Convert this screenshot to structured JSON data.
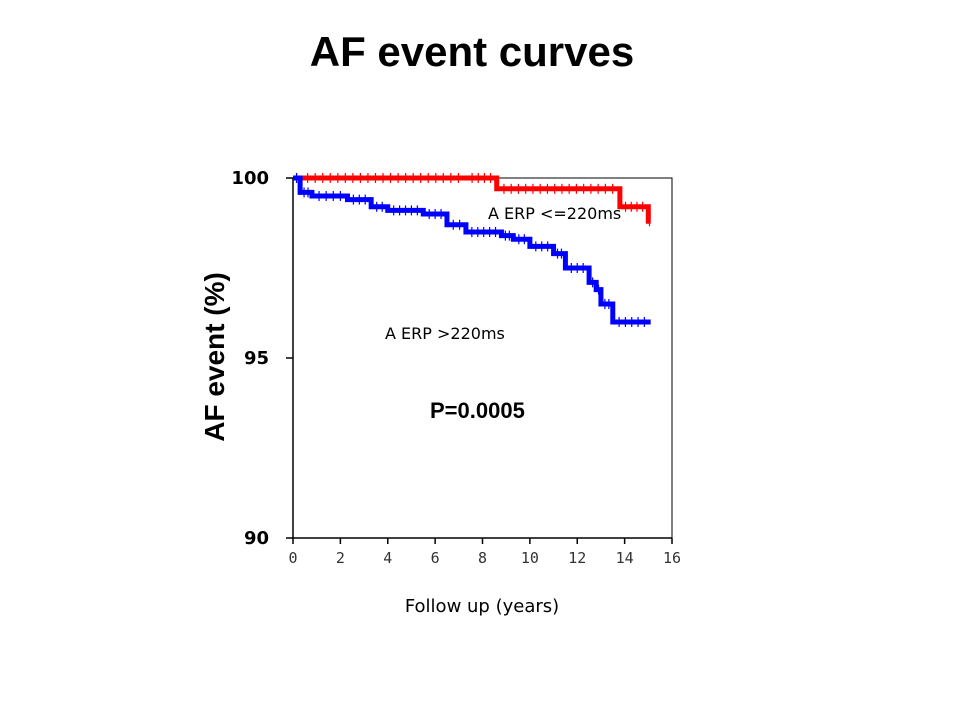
{
  "page": {
    "title": "AF event curves"
  },
  "chart_data": {
    "type": "line",
    "subtype": "kaplan-meier",
    "title": "AF event curves",
    "xlabel": "Follow up (years)",
    "ylabel": "AF event (%)",
    "xlim": [
      0,
      16
    ],
    "ylim": [
      90,
      100
    ],
    "x_ticks": [
      0,
      2,
      4,
      6,
      8,
      10,
      12,
      14,
      16
    ],
    "y_ticks": [
      90,
      95,
      100
    ],
    "grid": false,
    "annotations": {
      "series_le": "A ERP <=220ms",
      "series_gt": "A ERP >220ms",
      "p_value": "P=0.0005"
    },
    "series": [
      {
        "color": "#ff0000",
        "x": [
          0,
          0.3,
          7.3,
          8.6,
          13.8,
          15.0,
          15.1
        ],
        "y": [
          100,
          100,
          100,
          99.7,
          99.2,
          98.8,
          98.8
        ]
      },
      {
        "color": "#0000ff",
        "x": [
          0,
          0.3,
          0.8,
          2.3,
          3.3,
          4.0,
          5.5,
          6.5,
          7.3,
          8.8,
          9.3,
          10.0,
          11.0,
          11.5,
          12.5,
          12.8,
          13.0,
          13.5,
          15.1
        ],
        "y": [
          100,
          99.6,
          99.5,
          99.4,
          99.2,
          99.1,
          99.0,
          98.7,
          98.5,
          98.4,
          98.3,
          98.1,
          97.9,
          97.5,
          97.1,
          96.9,
          96.5,
          96.0,
          96.0
        ]
      }
    ]
  }
}
